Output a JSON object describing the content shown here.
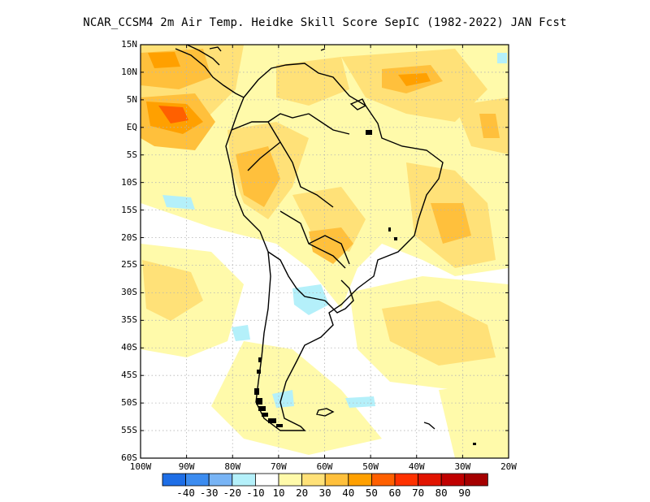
{
  "title": "NCAR_CCSM4  2m Air Temp. Heidke Skill Score SepIC (1982-2022) JAN Fcst",
  "lat_ticks": [
    "15N",
    "10N",
    "5N",
    "EQ",
    "5S",
    "10S",
    "15S",
    "20S",
    "25S",
    "30S",
    "35S",
    "40S",
    "45S",
    "50S",
    "55S",
    "60S"
  ],
  "lon_ticks": [
    "100W",
    "90W",
    "80W",
    "70W",
    "60W",
    "50W",
    "40W",
    "30W",
    "20W"
  ],
  "colorbar": {
    "colors": [
      "#1e6ee6",
      "#3c8cf0",
      "#78b4f5",
      "#b4f0fa",
      "#ffffff",
      "#fffaaa",
      "#ffe178",
      "#ffc03c",
      "#ffa000",
      "#ff6000",
      "#ff3200",
      "#e11400",
      "#c00000",
      "#a50000"
    ],
    "labels": [
      "-40",
      "-30",
      "-20",
      "-10",
      "10",
      "20",
      "30",
      "40",
      "50",
      "60",
      "70",
      "80",
      "90"
    ]
  },
  "map": {
    "lon_range": [
      -100,
      -20
    ],
    "lat_range": [
      -60,
      15
    ],
    "grid": true,
    "colors": {
      "land_outline": "#000000",
      "grid": "#b4b4b4",
      "frame": "#000000"
    }
  }
}
